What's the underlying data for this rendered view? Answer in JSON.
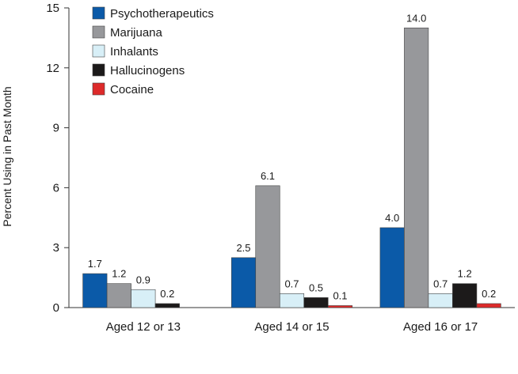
{
  "chart_data": {
    "type": "bar",
    "title": "",
    "xlabel": "",
    "ylabel": "Percent Using in Past Month",
    "ylim": [
      0,
      15
    ],
    "yticks": [
      "0",
      "3",
      "6",
      "9",
      "12",
      "15"
    ],
    "grid": false,
    "legend_position": "top-left",
    "categories": [
      "Aged 12 or 13",
      "Aged 14 or 15",
      "Aged 16 or 17"
    ],
    "series": [
      {
        "name": "Psychotherapeutics",
        "color": "#0b5aa8",
        "values": [
          1.7,
          2.5,
          4.0
        ],
        "labels": [
          "1.7",
          "2.5",
          "4.0"
        ]
      },
      {
        "name": "Marijuana",
        "color": "#97989b",
        "values": [
          1.2,
          6.1,
          14.0
        ],
        "labels": [
          "1.2",
          "6.1",
          "14.0"
        ]
      },
      {
        "name": "Inhalants",
        "color": "#d8eff7",
        "values": [
          0.9,
          0.7,
          0.7
        ],
        "labels": [
          "0.9",
          "0.7",
          "0.7"
        ]
      },
      {
        "name": "Hallucinogens",
        "color": "#1c1a1a",
        "values": [
          0.2,
          0.5,
          1.2
        ],
        "labels": [
          "0.2",
          "0.5",
          "1.2"
        ]
      },
      {
        "name": "Cocaine",
        "color": "#dd2a2a",
        "values": [
          null,
          0.1,
          0.2
        ],
        "labels": [
          "",
          "0.1",
          "0.2"
        ]
      }
    ]
  }
}
